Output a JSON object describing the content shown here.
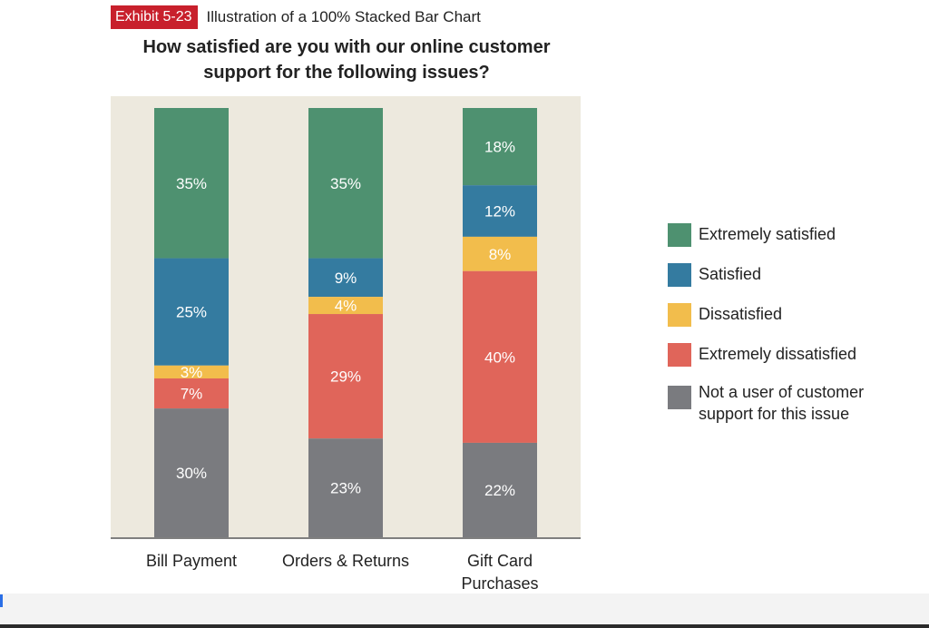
{
  "header": {
    "exhibit_label": "Exhibit 5-23",
    "caption": "Illustration of a 100% Stacked Bar Chart",
    "title_line1": "How satisfied are you with our online customer",
    "title_line2": "support for the following issues?"
  },
  "colors": {
    "plot_background": "#ede9de",
    "axis": "#555555",
    "exhibit_badge": "#c8202c"
  },
  "chart_data": {
    "type": "bar",
    "stacked": "100%",
    "categories": [
      "Bill Payment",
      "Orders & Returns",
      "Gift Card Purchases"
    ],
    "category_lines": [
      [
        "Bill Payment"
      ],
      [
        "Orders & Returns"
      ],
      [
        "Gift Card",
        "Purchases"
      ]
    ],
    "series": [
      {
        "name": "Extremely satisfied",
        "color": "#4e9170",
        "values": [
          35,
          35,
          18
        ]
      },
      {
        "name": "Satisfied",
        "color": "#347ba0",
        "values": [
          25,
          9,
          12
        ]
      },
      {
        "name": "Dissatisfied",
        "color": "#f2bd4c",
        "values": [
          3,
          4,
          8
        ]
      },
      {
        "name": "Extremely dissatisfied",
        "color": "#e0655a",
        "values": [
          7,
          29,
          40
        ]
      },
      {
        "name": "Not a user of customer support for this issue",
        "color": "#7a7b7f",
        "values": [
          30,
          23,
          22
        ]
      }
    ],
    "legend_lines": [
      [
        "Extremely satisfied"
      ],
      [
        "Satisfied"
      ],
      [
        "Dissatisfied"
      ],
      [
        "Extremely dissatisfied"
      ],
      [
        "Not a user of customer",
        "support for this issue"
      ]
    ],
    "value_suffix": "%",
    "ylim": [
      0,
      100
    ],
    "grid": false,
    "legend_position": "right"
  }
}
